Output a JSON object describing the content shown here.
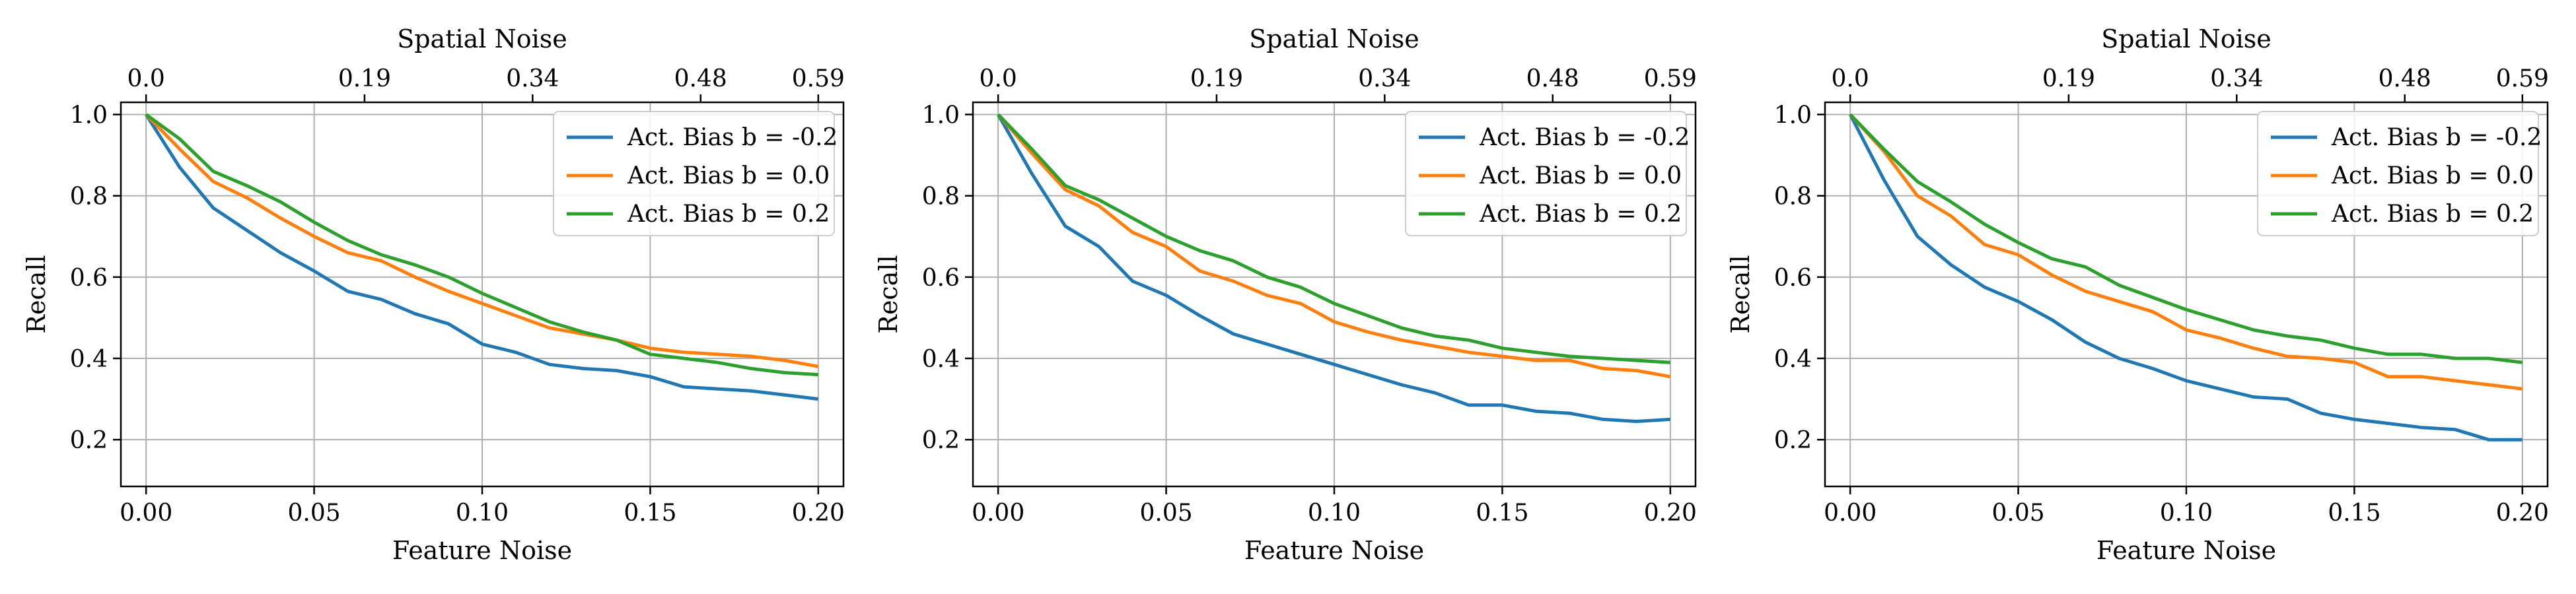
{
  "colors": {
    "series": [
      "#1f77b4",
      "#ff7f0e",
      "#2ca02c"
    ],
    "grid": "#b0b0b0",
    "axis": "#000000",
    "legend_border": "#cccccc"
  },
  "chart_data": [
    {
      "type": "line",
      "xlabel": "Feature Noise",
      "ylabel": "Recall",
      "top_xlabel": "Spatial Noise",
      "xlim": [
        -0.0075,
        0.2075
      ],
      "ylim": [
        0.085,
        1.03
      ],
      "xticks": [
        0.0,
        0.05,
        0.1,
        0.15,
        0.2
      ],
      "xtick_labels": [
        "0.00",
        "0.05",
        "0.10",
        "0.15",
        "0.20"
      ],
      "yticks": [
        0.2,
        0.4,
        0.6,
        0.8,
        1.0
      ],
      "ytick_labels": [
        "0.2",
        "0.4",
        "0.6",
        "0.8",
        "1.0"
      ],
      "top_xticks": [
        0.0,
        0.065,
        0.115,
        0.165,
        0.2
      ],
      "top_xtick_labels": [
        "0.0",
        "0.19",
        "0.34",
        "0.48",
        "0.59"
      ],
      "grid": true,
      "legend_position": "top-right",
      "x": [
        0.0,
        0.01,
        0.02,
        0.03,
        0.04,
        0.05,
        0.06,
        0.07,
        0.08,
        0.09,
        0.1,
        0.11,
        0.12,
        0.13,
        0.14,
        0.15,
        0.16,
        0.17,
        0.18,
        0.19,
        0.2
      ],
      "series": [
        {
          "name": "Act. Bias b = -0.2",
          "values": [
            1.0,
            0.87,
            0.77,
            0.715,
            0.66,
            0.615,
            0.565,
            0.545,
            0.51,
            0.485,
            0.435,
            0.415,
            0.385,
            0.375,
            0.37,
            0.355,
            0.33,
            0.325,
            0.32,
            0.31,
            0.3
          ]
        },
        {
          "name": "Act. Bias b = 0.0",
          "values": [
            1.0,
            0.915,
            0.835,
            0.795,
            0.745,
            0.7,
            0.66,
            0.64,
            0.6,
            0.565,
            0.535,
            0.505,
            0.475,
            0.46,
            0.445,
            0.425,
            0.415,
            0.41,
            0.405,
            0.395,
            0.38
          ]
        },
        {
          "name": "Act. Bias b = 0.2",
          "values": [
            1.0,
            0.94,
            0.86,
            0.825,
            0.785,
            0.735,
            0.69,
            0.655,
            0.63,
            0.6,
            0.56,
            0.525,
            0.49,
            0.465,
            0.445,
            0.41,
            0.4,
            0.39,
            0.375,
            0.365,
            0.36
          ]
        }
      ]
    },
    {
      "type": "line",
      "xlabel": "Feature Noise",
      "ylabel": "Recall",
      "top_xlabel": "Spatial Noise",
      "xlim": [
        -0.0075,
        0.2075
      ],
      "ylim": [
        0.085,
        1.03
      ],
      "xticks": [
        0.0,
        0.05,
        0.1,
        0.15,
        0.2
      ],
      "xtick_labels": [
        "0.00",
        "0.05",
        "0.10",
        "0.15",
        "0.20"
      ],
      "yticks": [
        0.2,
        0.4,
        0.6,
        0.8,
        1.0
      ],
      "ytick_labels": [
        "0.2",
        "0.4",
        "0.6",
        "0.8",
        "1.0"
      ],
      "top_xticks": [
        0.0,
        0.065,
        0.115,
        0.165,
        0.2
      ],
      "top_xtick_labels": [
        "0.0",
        "0.19",
        "0.34",
        "0.48",
        "0.59"
      ],
      "grid": true,
      "legend_position": "top-right",
      "x": [
        0.0,
        0.01,
        0.02,
        0.03,
        0.04,
        0.05,
        0.06,
        0.07,
        0.08,
        0.09,
        0.1,
        0.11,
        0.12,
        0.13,
        0.14,
        0.15,
        0.16,
        0.17,
        0.18,
        0.19,
        0.2
      ],
      "series": [
        {
          "name": "Act. Bias b = -0.2",
          "values": [
            1.0,
            0.855,
            0.725,
            0.675,
            0.59,
            0.555,
            0.505,
            0.46,
            0.435,
            0.41,
            0.385,
            0.36,
            0.335,
            0.315,
            0.285,
            0.285,
            0.27,
            0.265,
            0.25,
            0.245,
            0.25
          ]
        },
        {
          "name": "Act. Bias b = 0.0",
          "values": [
            1.0,
            0.905,
            0.815,
            0.775,
            0.71,
            0.675,
            0.615,
            0.59,
            0.555,
            0.535,
            0.49,
            0.465,
            0.445,
            0.43,
            0.415,
            0.405,
            0.395,
            0.395,
            0.375,
            0.37,
            0.355
          ]
        },
        {
          "name": "Act. Bias b = 0.2",
          "values": [
            1.0,
            0.915,
            0.825,
            0.79,
            0.745,
            0.7,
            0.665,
            0.64,
            0.6,
            0.575,
            0.535,
            0.505,
            0.475,
            0.455,
            0.445,
            0.425,
            0.415,
            0.405,
            0.4,
            0.395,
            0.39
          ]
        }
      ]
    },
    {
      "type": "line",
      "xlabel": "Feature Noise",
      "ylabel": "Recall",
      "top_xlabel": "Spatial Noise",
      "xlim": [
        -0.0075,
        0.2075
      ],
      "ylim": [
        0.085,
        1.03
      ],
      "xticks": [
        0.0,
        0.05,
        0.1,
        0.15,
        0.2
      ],
      "xtick_labels": [
        "0.00",
        "0.05",
        "0.10",
        "0.15",
        "0.20"
      ],
      "yticks": [
        0.2,
        0.4,
        0.6,
        0.8,
        1.0
      ],
      "ytick_labels": [
        "0.2",
        "0.4",
        "0.6",
        "0.8",
        "1.0"
      ],
      "top_xticks": [
        0.0,
        0.065,
        0.115,
        0.165,
        0.2
      ],
      "top_xtick_labels": [
        "0.0",
        "0.19",
        "0.34",
        "0.48",
        "0.59"
      ],
      "grid": true,
      "legend_position": "top-right",
      "x": [
        0.0,
        0.01,
        0.02,
        0.03,
        0.04,
        0.05,
        0.06,
        0.07,
        0.08,
        0.09,
        0.1,
        0.11,
        0.12,
        0.13,
        0.14,
        0.15,
        0.16,
        0.17,
        0.18,
        0.19,
        0.2
      ],
      "series": [
        {
          "name": "Act. Bias b = -0.2",
          "values": [
            1.0,
            0.84,
            0.7,
            0.63,
            0.575,
            0.54,
            0.495,
            0.44,
            0.4,
            0.375,
            0.345,
            0.325,
            0.305,
            0.3,
            0.265,
            0.25,
            0.24,
            0.23,
            0.225,
            0.2,
            0.2
          ]
        },
        {
          "name": "Act. Bias b = 0.0",
          "values": [
            1.0,
            0.91,
            0.8,
            0.75,
            0.68,
            0.655,
            0.605,
            0.565,
            0.54,
            0.515,
            0.47,
            0.45,
            0.425,
            0.405,
            0.4,
            0.39,
            0.355,
            0.355,
            0.345,
            0.335,
            0.325
          ]
        },
        {
          "name": "Act. Bias b = 0.2",
          "values": [
            1.0,
            0.915,
            0.835,
            0.785,
            0.73,
            0.685,
            0.645,
            0.625,
            0.58,
            0.55,
            0.52,
            0.495,
            0.47,
            0.455,
            0.445,
            0.425,
            0.41,
            0.41,
            0.4,
            0.4,
            0.39
          ]
        }
      ]
    }
  ]
}
